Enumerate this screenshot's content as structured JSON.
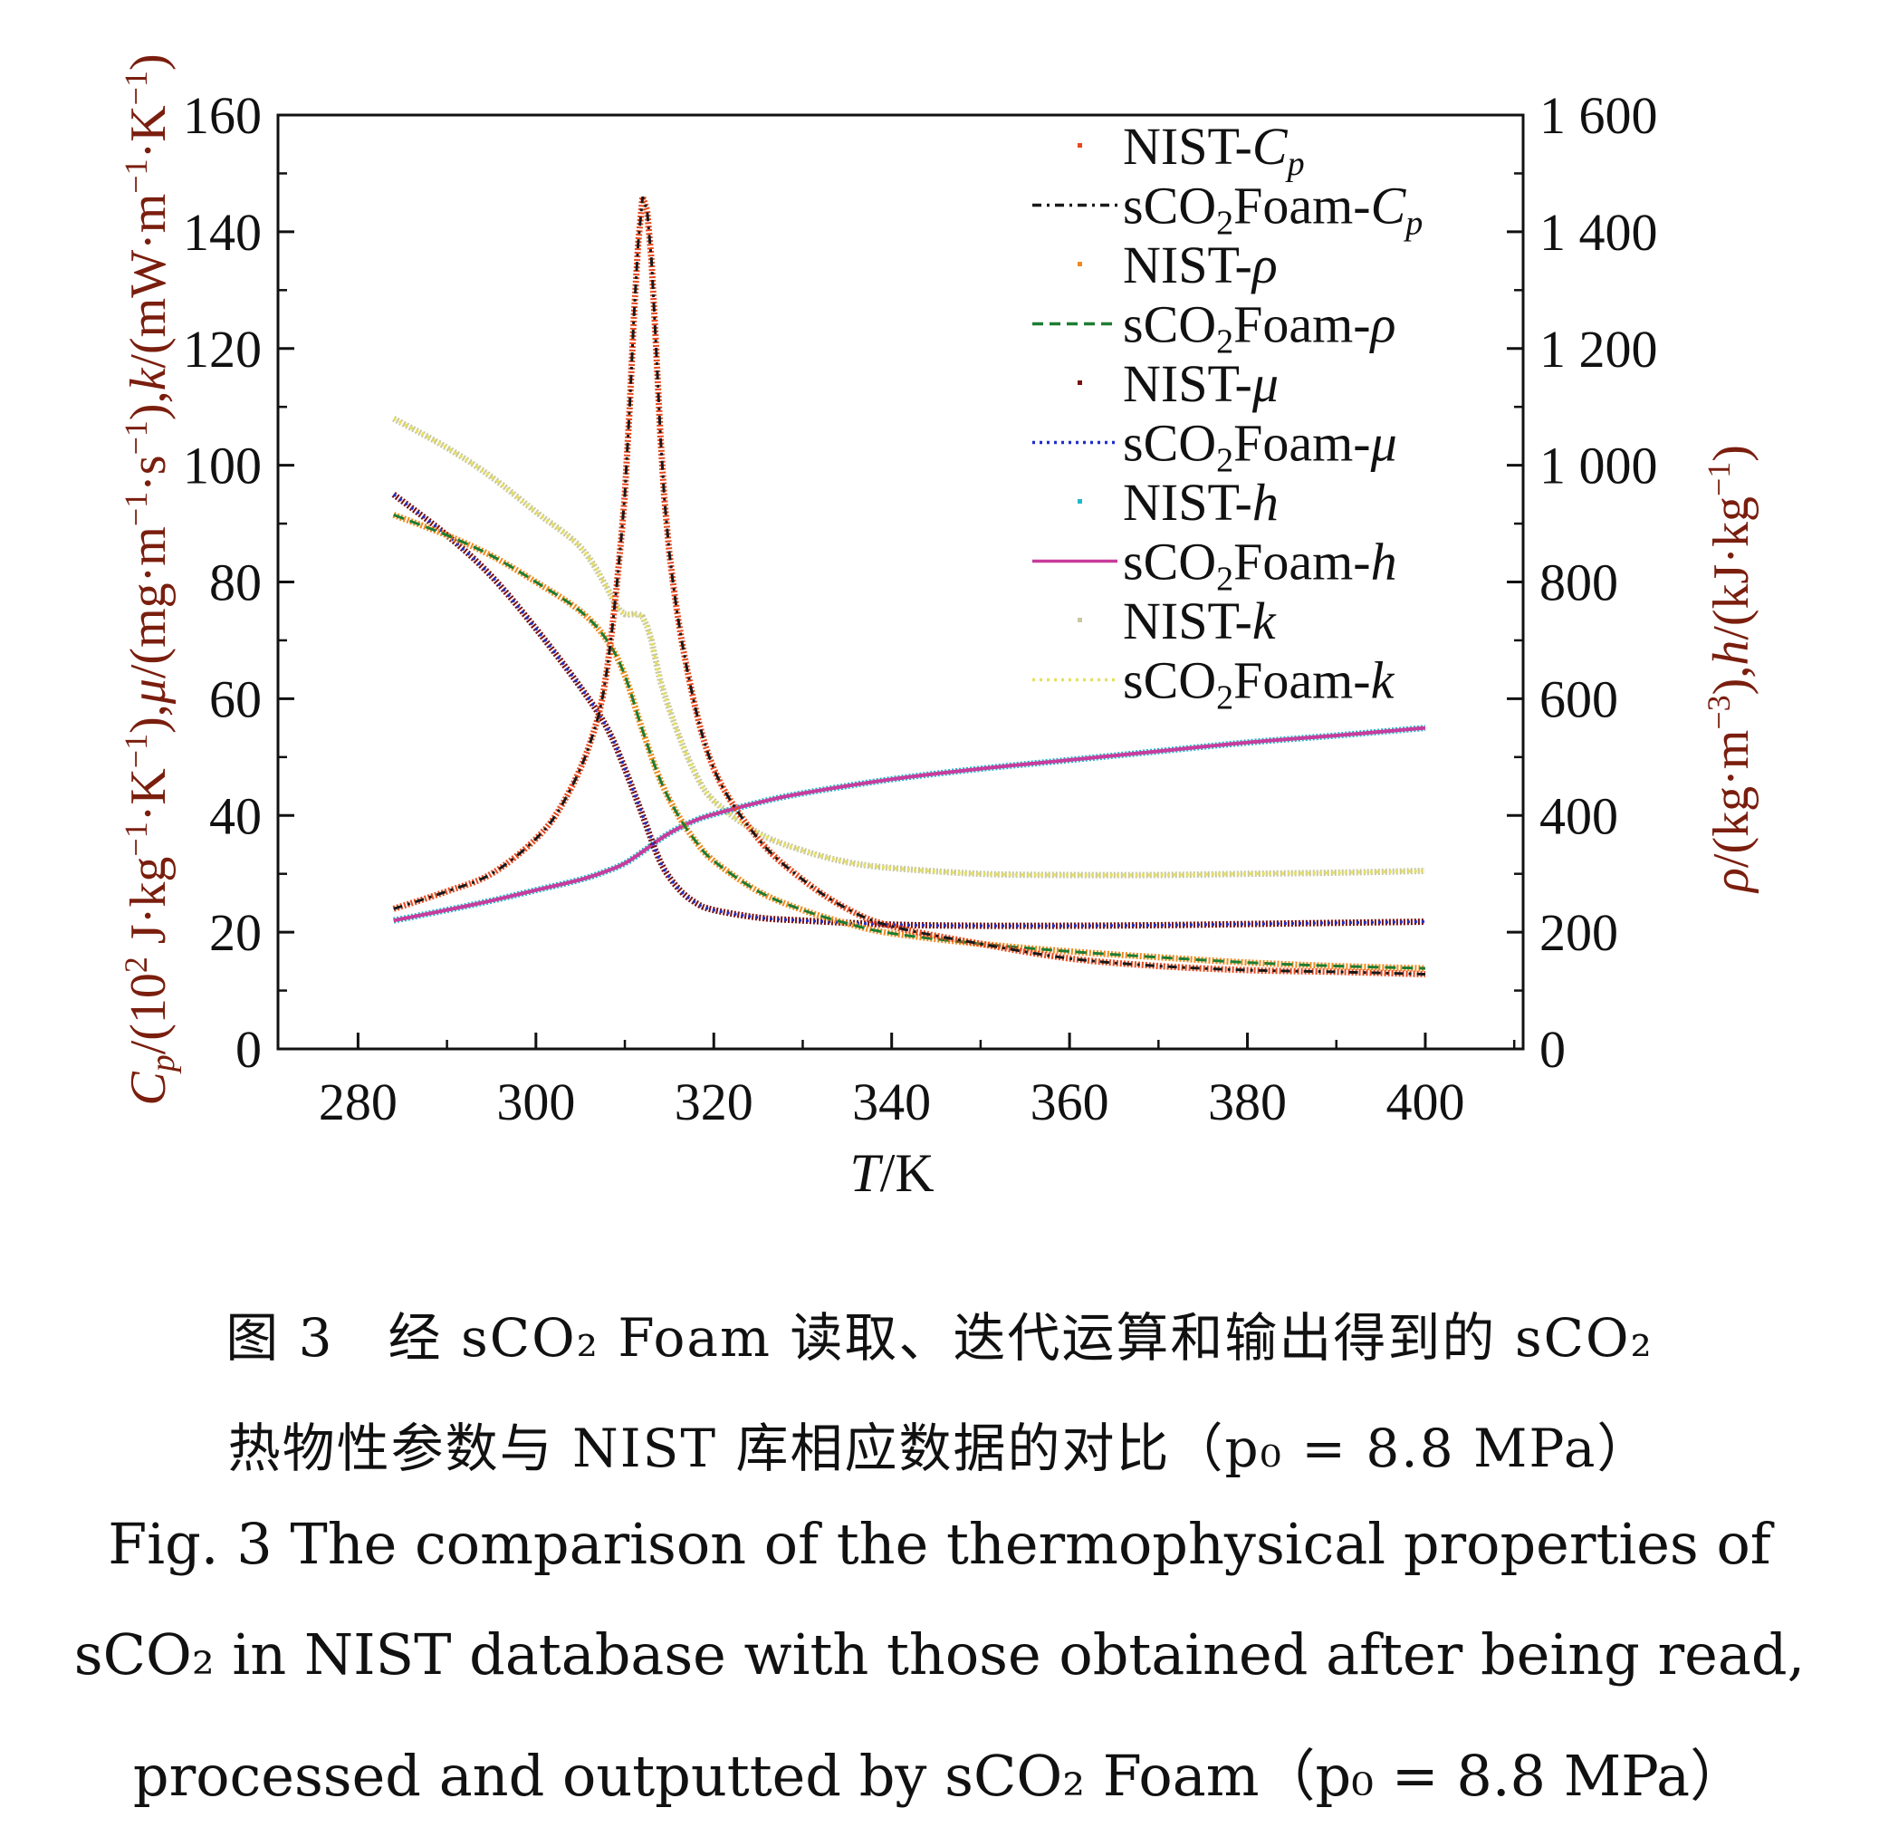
{
  "chart_data": {
    "type": "line",
    "xlabel": "T/K",
    "ylabel_left": "Cp/(10² J·kg⁻¹·K⁻¹), μ/(mg·m⁻¹·s⁻¹), k/(mW·m⁻¹·K⁻¹)",
    "ylabel_right": "ρ/(kg·m⁻³), h/(kJ·kg⁻¹)",
    "xlim": [
      271,
      411
    ],
    "ylim_left": [
      0,
      160
    ],
    "ylim_right": [
      0,
      1600
    ],
    "xticks": [
      280,
      300,
      320,
      340,
      360,
      380,
      400
    ],
    "xtick_labels": [
      "280",
      "300",
      "320",
      "340",
      "360",
      "380",
      "400"
    ],
    "yticks_left": [
      0,
      20,
      40,
      60,
      80,
      100,
      120,
      140,
      160
    ],
    "ytick_labels_left": [
      "0",
      "20",
      "40",
      "60",
      "80",
      "100",
      "120",
      "140",
      "160"
    ],
    "yticks_right": [
      0,
      200,
      400,
      600,
      800,
      1000,
      1200,
      1400,
      1600
    ],
    "ytick_labels_right": [
      "0",
      "200",
      "400",
      "600",
      "800",
      "1 000",
      "1 200",
      "1 400",
      "1 600"
    ],
    "legend_position": "top-right",
    "legend": [
      {
        "label": "NIST-Cp",
        "style": "dots",
        "color": "#e8481c"
      },
      {
        "label": "sCO2Foam-Cp",
        "style": "dashdot",
        "color": "#1a1a1a"
      },
      {
        "label": "NIST-ρ",
        "style": "dots",
        "color": "#f08a1c"
      },
      {
        "label": "sCO2Foam-ρ",
        "style": "dashed",
        "color": "#1e7d32"
      },
      {
        "label": "NIST-μ",
        "style": "dots",
        "color": "#7a1010"
      },
      {
        "label": "sCO2Foam-μ",
        "style": "dotted",
        "color": "#2030c8"
      },
      {
        "label": "NIST-h",
        "style": "dots",
        "color": "#20b8c8"
      },
      {
        "label": "sCO2Foam-h",
        "style": "solid",
        "color": "#c83c9c"
      },
      {
        "label": "NIST-k",
        "style": "dots",
        "color": "#c8c8a0"
      },
      {
        "label": "sCO2Foam-k",
        "style": "dotted",
        "color": "#e8e060"
      }
    ],
    "series": [
      {
        "name": "Cp",
        "axis": "left",
        "x": [
          284,
          290,
          295,
          300,
          303,
          306,
          308,
          310,
          311,
          312,
          313,
          314,
          315,
          317,
          320,
          325,
          330,
          335,
          340,
          350,
          360,
          370,
          380,
          390,
          400
        ],
        "y": [
          24,
          27,
          30,
          36,
          42,
          52,
          65,
          95,
          125,
          146,
          135,
          105,
          85,
          65,
          48,
          36,
          29,
          24,
          21,
          18,
          15.5,
          14.2,
          13.5,
          13.2,
          12.8
        ]
      },
      {
        "name": "ρ",
        "axis": "right",
        "x": [
          284,
          290,
          295,
          300,
          305,
          308,
          310,
          312,
          314,
          316,
          318,
          320,
          325,
          330,
          335,
          340,
          350,
          360,
          370,
          380,
          390,
          400
        ],
        "y": [
          915,
          880,
          845,
          800,
          750,
          700,
          640,
          545,
          460,
          400,
          355,
          322,
          270,
          238,
          215,
          198,
          180,
          167,
          157,
          148,
          142,
          138
        ]
      },
      {
        "name": "μ",
        "axis": "left",
        "x": [
          284,
          290,
          295,
          300,
          305,
          308,
          310,
          312,
          314,
          316,
          318,
          320,
          325,
          330,
          340,
          350,
          360,
          370,
          380,
          390,
          400
        ],
        "y": [
          95,
          88,
          81,
          72,
          62,
          55,
          48,
          40,
          32,
          27.5,
          25,
          23.8,
          22.5,
          22,
          21.3,
          21.1,
          21.1,
          21.2,
          21.4,
          21.6,
          21.8
        ]
      },
      {
        "name": "h",
        "axis": "right",
        "x": [
          284,
          290,
          295,
          300,
          305,
          308,
          310,
          312,
          314,
          316,
          318,
          320,
          325,
          330,
          340,
          350,
          360,
          370,
          380,
          390,
          400
        ],
        "y": [
          220,
          238,
          254,
          272,
          290,
          305,
          318,
          338,
          360,
          378,
          392,
          402,
          422,
          438,
          462,
          480,
          495,
          510,
          525,
          537,
          550
        ]
      },
      {
        "name": "k",
        "axis": "left",
        "x": [
          284,
          290,
          295,
          300,
          305,
          308,
          309,
          310,
          311,
          312,
          313,
          314,
          316,
          318,
          320,
          325,
          330,
          335,
          340,
          350,
          360,
          370,
          380,
          390,
          400
        ],
        "y": [
          108,
          103,
          98,
          92,
          86,
          79,
          76,
          74.5,
          74.5,
          74,
          70,
          63,
          54,
          47,
          42.5,
          37,
          34,
          32,
          31,
          30,
          29.8,
          29.8,
          30,
          30.2,
          30.5
        ]
      }
    ]
  },
  "caption": {
    "cn_line1": "图 3　经 sCO₂ Foam 读取、迭代运算和输出得到的 sCO₂",
    "cn_line2": "热物性参数与 NIST 库相应数据的对比（p₀ = 8.8 MPa）",
    "en_line1": "Fig. 3   The comparison of the thermophysical properties of",
    "en_line2": "sCO₂ in NIST database with those obtained after being read,",
    "en_line3": "processed and outputted by sCO₂ Foam（p₀ = 8.8 MPa）"
  }
}
